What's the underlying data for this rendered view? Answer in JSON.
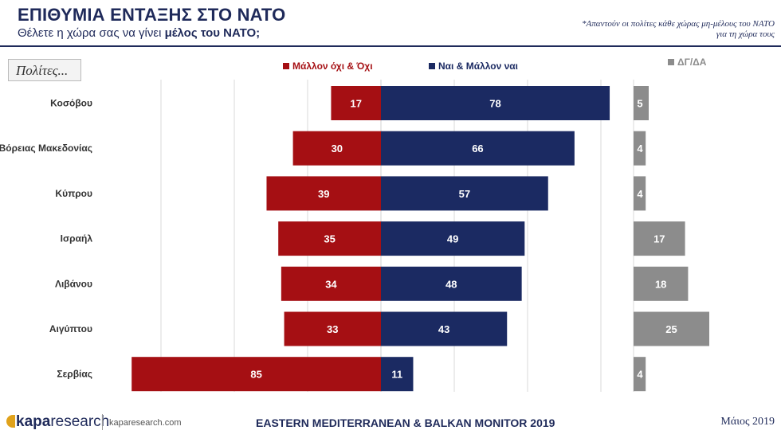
{
  "header": {
    "title": "ΕΠΙΘΥΜΙΑ ΕΝΤΑΞΗΣ ΣΤΟ ΝΑΤΟ",
    "subtitle_plain": "Θέλετε η χώρα σας να γίνει ",
    "subtitle_bold": "μέλος του ΝΑΤΟ;",
    "note_line1": "*Απαντούν οι πολίτες κάθε χώρας μη-μέλους του ΝΑΤΟ",
    "note_line2": "για τη χώρα τους"
  },
  "respondent_label": "Πολίτες...",
  "colors": {
    "no": "#a50f13",
    "yes": "#1b2a62",
    "dk": "#8c8c8c",
    "grid": "#d9d9d9",
    "navy_text": "#1f2a5a"
  },
  "chart_data": {
    "type": "bar",
    "orientation": "horizontal-diverging",
    "categories": [
      "Κοσόβου",
      "Βόρειας Μακεδονίας",
      "Κύπρου",
      "Ισραήλ",
      "Λιβάνου",
      "Αιγύπτου",
      "Σερβίας"
    ],
    "series": [
      {
        "name": "Μάλλον όχι & Όχι",
        "direction": "left",
        "color": "#a50f13",
        "values": [
          17,
          30,
          39,
          35,
          34,
          33,
          85
        ]
      },
      {
        "name": "Ναι & Μάλλον ναι",
        "direction": "right",
        "color": "#1b2a62",
        "values": [
          78,
          66,
          57,
          49,
          48,
          43,
          11
        ]
      },
      {
        "name": "ΔΓ/ΔΑ",
        "panel": "separate",
        "color": "#8c8c8c",
        "values": [
          5,
          4,
          4,
          17,
          18,
          25,
          4
        ]
      }
    ],
    "legend_position": "top",
    "grid": true
  },
  "footer": {
    "brand_bold": "kapa",
    "brand_light": "research",
    "url": "kaparesearch.com",
    "center": "EASTERN MEDITERRANEAN & BALKAN MONITOR 2019",
    "date": "Μάιος 2019"
  }
}
